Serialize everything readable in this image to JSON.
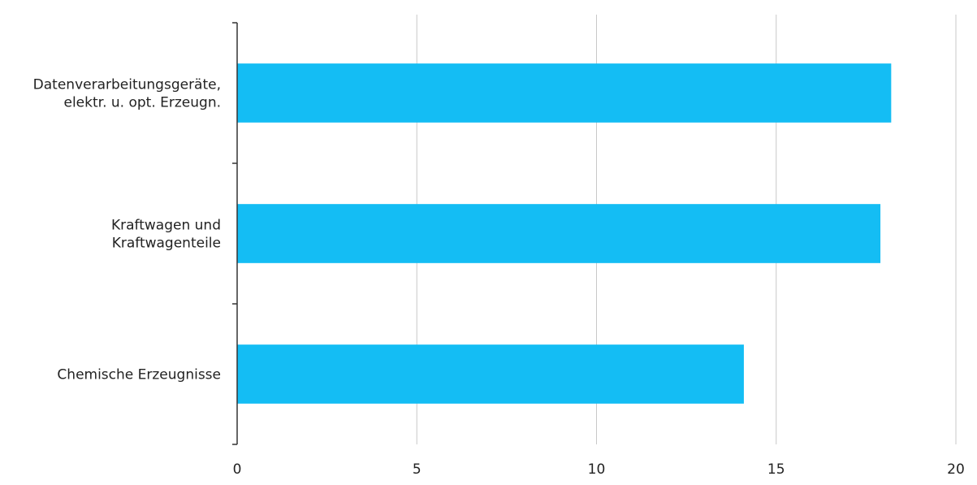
{
  "chart_data": {
    "type": "bar",
    "orientation": "horizontal",
    "categories": [
      [
        "Datenverarbeitungsgeräte,",
        "elektr. u. opt. Erzeugn."
      ],
      [
        "Kraftwagen und",
        "Kraftwagenteile"
      ],
      [
        "Chemische Erzeugnisse"
      ]
    ],
    "values": [
      18.2,
      17.9,
      14.1
    ],
    "xlim": [
      0,
      20
    ],
    "xticks": [
      0,
      5,
      10,
      15,
      20
    ],
    "grid": true,
    "bar_color": "#14BDF4",
    "title": "",
    "xlabel": "",
    "ylabel": ""
  }
}
